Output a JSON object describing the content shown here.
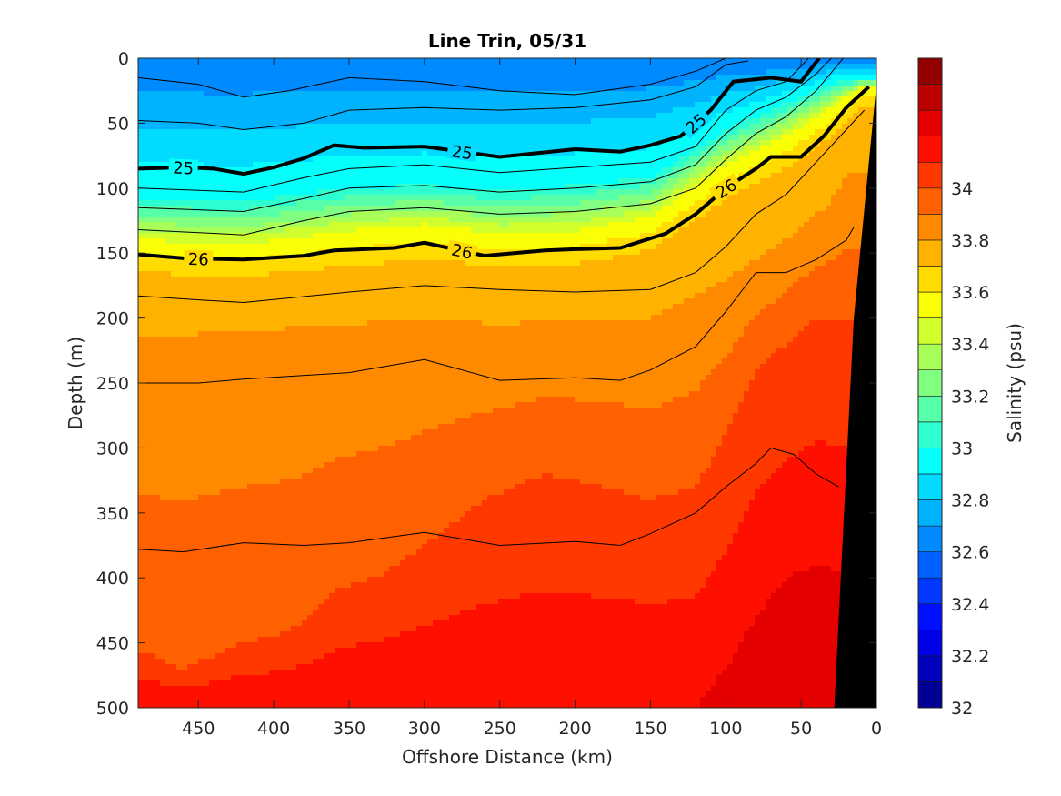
{
  "chart_data": {
    "type": "heatmap",
    "subtype": "filled-contour-section",
    "title": "Line Trin, 05/31",
    "xlabel": "Offshore Distance (km)",
    "ylabel": "Depth (m)",
    "xlim": [
      490,
      0
    ],
    "ylim": [
      0,
      500
    ],
    "x_reversed": true,
    "y_reversed": true,
    "x_ticks": [
      "450",
      "400",
      "350",
      "300",
      "250",
      "200",
      "150",
      "100",
      "50",
      "0"
    ],
    "y_ticks": [
      "0",
      "50",
      "100",
      "150",
      "200",
      "250",
      "300",
      "350",
      "400",
      "450",
      "500"
    ],
    "colorbar": {
      "label": "Salinity (psu)",
      "range": [
        32,
        34.5
      ],
      "step": 0.1,
      "tick_labels": [
        "32",
        "32.2",
        "32.4",
        "32.6",
        "32.8",
        "33",
        "33.2",
        "33.4",
        "33.6",
        "33.8",
        "34"
      ],
      "colormap": "jet"
    },
    "salinity_isolines": [
      {
        "salinity": 33.0,
        "points": [
          [
            490,
            108
          ],
          [
            420,
            110
          ],
          [
            350,
            100
          ],
          [
            300,
            98
          ],
          [
            250,
            102
          ],
          [
            200,
            98
          ],
          [
            150,
            92
          ],
          [
            100,
            55
          ],
          [
            60,
            35
          ],
          [
            30,
            20
          ],
          [
            10,
            15
          ]
        ]
      },
      {
        "salinity": 33.5,
        "points": [
          [
            490,
            140
          ],
          [
            420,
            143
          ],
          [
            350,
            133
          ],
          [
            300,
            128
          ],
          [
            250,
            135
          ],
          [
            200,
            133
          ],
          [
            150,
            122
          ],
          [
            100,
            82
          ],
          [
            60,
            60
          ],
          [
            30,
            38
          ],
          [
            10,
            22
          ]
        ]
      },
      {
        "salinity": 33.7,
        "points": [
          [
            490,
            165
          ],
          [
            420,
            168
          ],
          [
            350,
            160
          ],
          [
            300,
            155
          ],
          [
            250,
            160
          ],
          [
            200,
            158
          ],
          [
            150,
            148
          ],
          [
            100,
            108
          ],
          [
            60,
            85
          ],
          [
            30,
            60
          ],
          [
            10,
            38
          ]
        ]
      },
      {
        "salinity": 33.8,
        "points": [
          [
            490,
            215
          ],
          [
            420,
            210
          ],
          [
            350,
            205
          ],
          [
            300,
            200
          ],
          [
            250,
            205
          ],
          [
            200,
            200
          ],
          [
            150,
            200
          ],
          [
            100,
            170
          ],
          [
            60,
            140
          ],
          [
            30,
            110
          ],
          [
            20,
            90
          ]
        ]
      },
      {
        "salinity": 34.0,
        "points": [
          [
            490,
            455
          ],
          [
            460,
            470
          ],
          [
            420,
            450
          ],
          [
            400,
            445
          ],
          [
            380,
            435
          ],
          [
            360,
            410
          ],
          [
            330,
            398
          ],
          [
            300,
            375
          ],
          [
            260,
            340
          ],
          [
            220,
            320
          ],
          [
            180,
            330
          ],
          [
            150,
            340
          ],
          [
            120,
            330
          ],
          [
            100,
            290
          ],
          [
            80,
            240
          ],
          [
            60,
            220
          ],
          [
            40,
            200
          ],
          [
            20,
            200
          ]
        ]
      },
      {
        "salinity": 34.2,
        "points": [
          [
            120,
            500
          ],
          [
            100,
            470
          ],
          [
            80,
            430
          ],
          [
            60,
            400
          ],
          [
            40,
            390
          ],
          [
            25,
            395
          ]
        ]
      }
    ],
    "density_contours": [
      {
        "level": 23.5,
        "points": [
          [
            490,
            15
          ],
          [
            450,
            20
          ],
          [
            420,
            30
          ],
          [
            390,
            25
          ],
          [
            350,
            15
          ],
          [
            300,
            18
          ],
          [
            250,
            25
          ],
          [
            200,
            28
          ],
          [
            150,
            20
          ],
          [
            120,
            10
          ],
          [
            100,
            0
          ]
        ]
      },
      {
        "level": 24.5,
        "points": [
          [
            490,
            48
          ],
          [
            450,
            50
          ],
          [
            420,
            55
          ],
          [
            380,
            50
          ],
          [
            350,
            40
          ],
          [
            300,
            38
          ],
          [
            250,
            40
          ],
          [
            200,
            38
          ],
          [
            150,
            32
          ],
          [
            120,
            22
          ],
          [
            100,
            5
          ],
          [
            85,
            2
          ]
        ]
      },
      {
        "level": 25,
        "labeled": true,
        "points": [
          [
            490,
            85
          ],
          [
            460,
            84
          ],
          [
            440,
            85
          ],
          [
            420,
            89
          ],
          [
            400,
            84
          ],
          [
            380,
            77
          ],
          [
            360,
            67
          ],
          [
            340,
            69
          ],
          [
            300,
            68
          ],
          [
            250,
            76
          ],
          [
            200,
            70
          ],
          [
            170,
            72
          ],
          [
            150,
            67
          ],
          [
            130,
            60
          ],
          [
            110,
            40
          ],
          [
            95,
            18
          ],
          [
            70,
            15
          ],
          [
            50,
            18
          ],
          [
            38,
            0
          ]
        ]
      },
      {
        "level": 25.3,
        "points": [
          [
            490,
            100
          ],
          [
            420,
            103
          ],
          [
            380,
            92
          ],
          [
            350,
            85
          ],
          [
            300,
            82
          ],
          [
            250,
            88
          ],
          [
            200,
            84
          ],
          [
            150,
            80
          ],
          [
            120,
            68
          ],
          [
            100,
            40
          ],
          [
            80,
            25
          ],
          [
            60,
            18
          ],
          [
            45,
            0
          ]
        ]
      },
      {
        "level": 25.6,
        "points": [
          [
            490,
            115
          ],
          [
            420,
            118
          ],
          [
            380,
            108
          ],
          [
            350,
            100
          ],
          [
            300,
            98
          ],
          [
            250,
            103
          ],
          [
            200,
            100
          ],
          [
            150,
            95
          ],
          [
            120,
            82
          ],
          [
            100,
            58
          ],
          [
            80,
            40
          ],
          [
            60,
            30
          ],
          [
            40,
            12
          ],
          [
            30,
            0
          ]
        ]
      },
      {
        "level": 25.8,
        "points": [
          [
            490,
            132
          ],
          [
            420,
            136
          ],
          [
            380,
            125
          ],
          [
            350,
            118
          ],
          [
            300,
            115
          ],
          [
            250,
            120
          ],
          [
            200,
            118
          ],
          [
            150,
            112
          ],
          [
            120,
            100
          ],
          [
            100,
            78
          ],
          [
            80,
            58
          ],
          [
            60,
            45
          ],
          [
            40,
            25
          ],
          [
            22,
            0
          ]
        ]
      },
      {
        "level": 26,
        "labeled": true,
        "points": [
          [
            490,
            151
          ],
          [
            460,
            154
          ],
          [
            420,
            155
          ],
          [
            380,
            152
          ],
          [
            360,
            148
          ],
          [
            320,
            146
          ],
          [
            300,
            142
          ],
          [
            260,
            152
          ],
          [
            220,
            148
          ],
          [
            200,
            147
          ],
          [
            170,
            146
          ],
          [
            140,
            135
          ],
          [
            120,
            120
          ],
          [
            100,
            100
          ],
          [
            80,
            85
          ],
          [
            70,
            76
          ],
          [
            50,
            76
          ],
          [
            35,
            60
          ],
          [
            20,
            38
          ],
          [
            5,
            22
          ]
        ]
      },
      {
        "level": 26.3,
        "points": [
          [
            490,
            183
          ],
          [
            450,
            186
          ],
          [
            420,
            188
          ],
          [
            350,
            180
          ],
          [
            300,
            175
          ],
          [
            250,
            178
          ],
          [
            200,
            180
          ],
          [
            150,
            178
          ],
          [
            120,
            165
          ],
          [
            100,
            145
          ],
          [
            80,
            120
          ],
          [
            60,
            105
          ],
          [
            40,
            80
          ],
          [
            20,
            55
          ],
          [
            8,
            40
          ]
        ]
      },
      {
        "level": 26.6,
        "points": [
          [
            490,
            250
          ],
          [
            450,
            250
          ],
          [
            420,
            247
          ],
          [
            350,
            242
          ],
          [
            300,
            232
          ],
          [
            250,
            248
          ],
          [
            200,
            246
          ],
          [
            170,
            248
          ],
          [
            150,
            240
          ],
          [
            120,
            222
          ],
          [
            100,
            195
          ],
          [
            80,
            165
          ],
          [
            60,
            165
          ],
          [
            40,
            155
          ],
          [
            20,
            140
          ],
          [
            15,
            130
          ]
        ]
      },
      {
        "level": 26.9,
        "points": [
          [
            490,
            378
          ],
          [
            460,
            380
          ],
          [
            420,
            373
          ],
          [
            380,
            375
          ],
          [
            350,
            373
          ],
          [
            300,
            365
          ],
          [
            250,
            375
          ],
          [
            200,
            372
          ],
          [
            170,
            375
          ],
          [
            150,
            366
          ],
          [
            120,
            350
          ],
          [
            100,
            330
          ],
          [
            80,
            312
          ],
          [
            70,
            300
          ],
          [
            55,
            305
          ],
          [
            40,
            320
          ],
          [
            25,
            330
          ]
        ]
      }
    ],
    "shelf_profile": [
      [
        0,
        0
      ],
      [
        0,
        500
      ],
      [
        28,
        500
      ],
      [
        15,
        200
      ],
      [
        0,
        20
      ]
    ]
  }
}
